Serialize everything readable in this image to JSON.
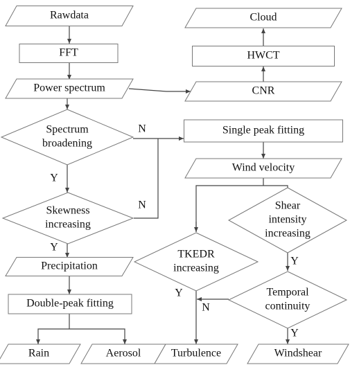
{
  "nodes": [
    {
      "lines": [
        "Rawdata"
      ]
    },
    {
      "lines": [
        "FFT"
      ]
    },
    {
      "lines": [
        "Power spectrum"
      ]
    },
    {
      "lines": [
        "Spectrum",
        "broadening"
      ]
    },
    {
      "lines": [
        "Skewness",
        "increasing"
      ]
    },
    {
      "lines": [
        "Precipitation"
      ]
    },
    {
      "lines": [
        "Double-peak fitting"
      ]
    },
    {
      "lines": [
        "Rain"
      ]
    },
    {
      "lines": [
        "Aerosol"
      ]
    },
    {
      "lines": [
        "Cloud"
      ]
    },
    {
      "lines": [
        "HWCT"
      ]
    },
    {
      "lines": [
        "CNR"
      ]
    },
    {
      "lines": [
        "Single peak fitting"
      ]
    },
    {
      "lines": [
        "Wind velocity"
      ]
    },
    {
      "lines": [
        "Shear",
        "intensity",
        "increasing"
      ]
    },
    {
      "lines": [
        "TKEDR",
        "increasing"
      ]
    },
    {
      "lines": [
        "Temporal",
        "continuity"
      ]
    },
    {
      "lines": [
        "Turbulence"
      ]
    },
    {
      "lines": [
        "Windshear"
      ]
    }
  ],
  "edge_labels": [
    "N",
    "Y",
    "N",
    "Y",
    "Y",
    "Y",
    "N",
    "Y"
  ]
}
